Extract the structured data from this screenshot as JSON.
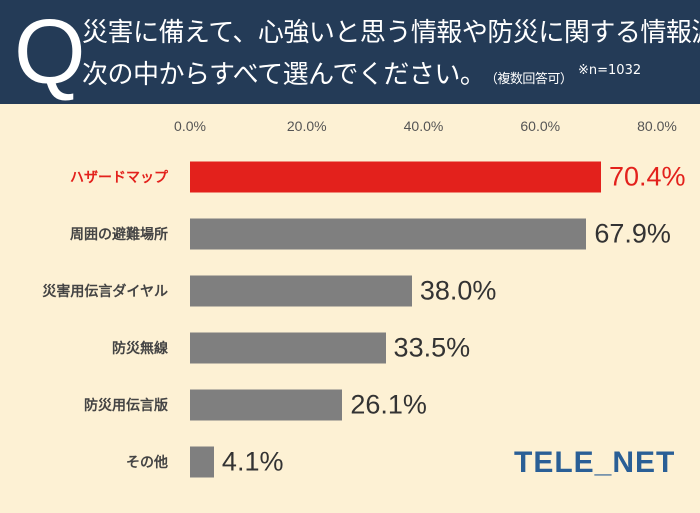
{
  "header": {
    "q_mark": "Q",
    "line1": "災害に備えて、心強いと思う情報や防災に関する情報源を",
    "line2": "次の中からすべて選んでください。",
    "note": "（複数回答可）",
    "sample": "※n=1032"
  },
  "logo": "TELE_NET",
  "chart_data": {
    "type": "bar",
    "orientation": "horizontal",
    "categories": [
      "ハザードマップ",
      "周囲の避難場所",
      "災害用伝言ダイヤル",
      "防災無線",
      "防災用伝言版",
      "その他"
    ],
    "values": [
      70.4,
      67.9,
      38.0,
      33.5,
      26.1,
      4.1
    ],
    "value_labels": [
      "70.4%",
      "67.9%",
      "38.0%",
      "33.5%",
      "26.1%",
      "4.1%"
    ],
    "xticks": [
      "0.0%",
      "20.0%",
      "40.0%",
      "60.0%",
      "80.0%"
    ],
    "xlim": [
      0,
      80
    ],
    "grid": false,
    "colors": {
      "highlight": "#e3211c",
      "default": "#7f7f7f",
      "highlight_label": "#e3211c"
    }
  }
}
